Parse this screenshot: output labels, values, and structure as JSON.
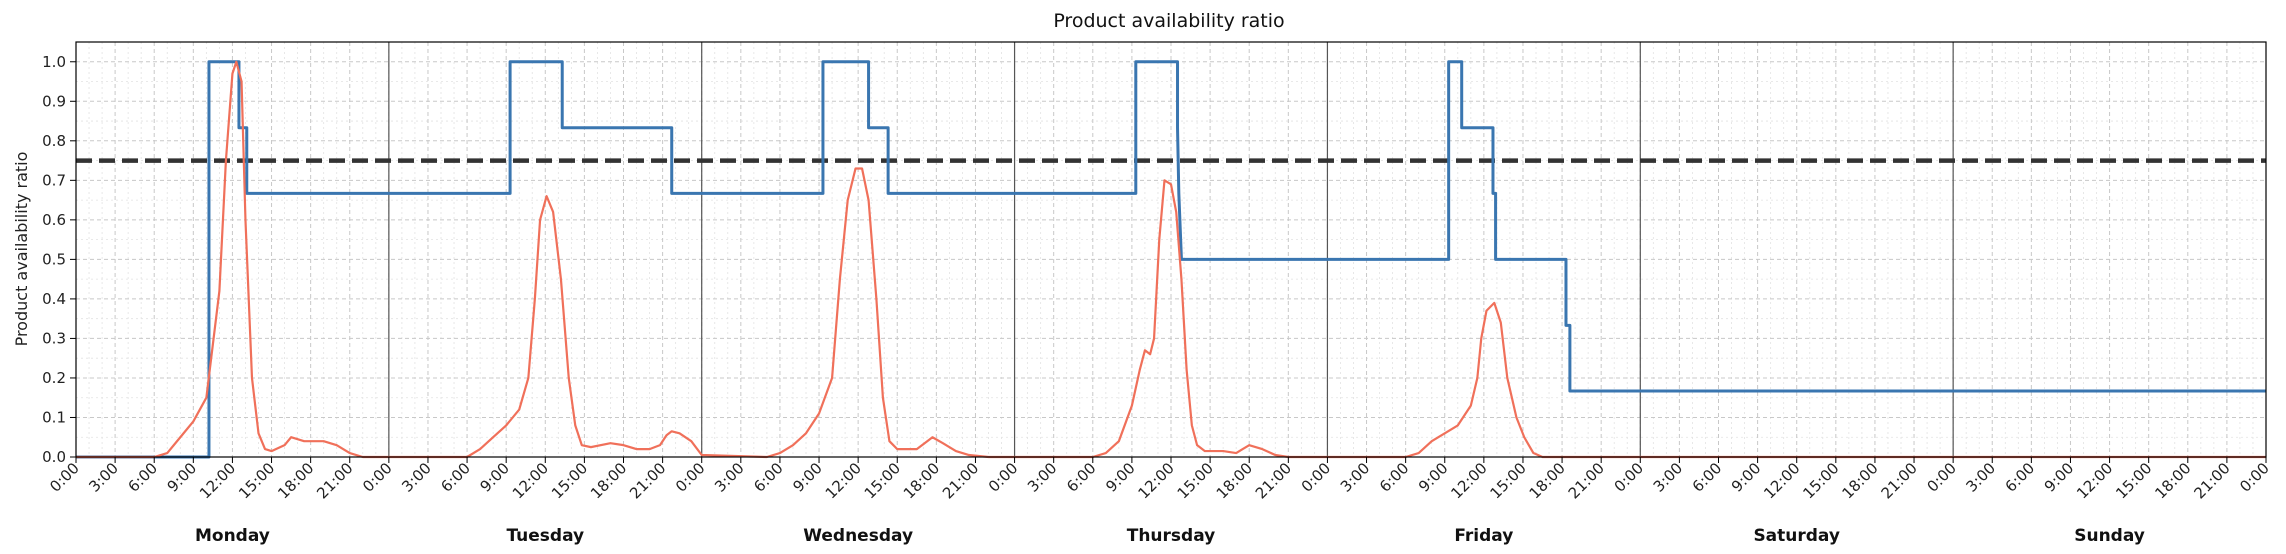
{
  "chart_data": {
    "type": "line",
    "title": "Product availability ratio",
    "ylabel": "Product availability ratio",
    "xlabel": "",
    "ylim": [
      0,
      1.05
    ],
    "xlim_hours": [
      0,
      168
    ],
    "y_ticks": [
      "0.0",
      "0.1",
      "0.2",
      "0.3",
      "0.4",
      "0.5",
      "0.6",
      "0.7",
      "0.8",
      "0.9",
      "1.0"
    ],
    "x_tick_labels": [
      "0:00",
      "3:00",
      "6:00",
      "9:00",
      "12:00",
      "15:00",
      "18:00",
      "21:00"
    ],
    "final_tick_label": "0:00",
    "days": [
      "Monday",
      "Tuesday",
      "Wednesday",
      "Thursday",
      "Friday",
      "Saturday",
      "Sunday"
    ],
    "grid": true,
    "threshold": {
      "value": 0.75,
      "color": "#333333",
      "style": "dashed"
    },
    "series": [
      {
        "color": "#3a76b0",
        "style": "step",
        "points": [
          [
            0,
            0
          ],
          [
            10.2,
            0
          ],
          [
            10.2,
            1.0
          ],
          [
            12.5,
            1.0
          ],
          [
            12.5,
            0.833
          ],
          [
            13.1,
            0.833
          ],
          [
            13.1,
            0.667
          ],
          [
            33.3,
            0.667
          ],
          [
            33.3,
            1.0
          ],
          [
            37.3,
            1.0
          ],
          [
            37.3,
            0.833
          ],
          [
            45.7,
            0.833
          ],
          [
            45.7,
            0.667
          ],
          [
            57.3,
            0.667
          ],
          [
            57.3,
            1.0
          ],
          [
            60.8,
            1.0
          ],
          [
            60.8,
            0.833
          ],
          [
            62.3,
            0.833
          ],
          [
            62.3,
            0.667
          ],
          [
            81.3,
            0.667
          ],
          [
            81.3,
            1.0
          ],
          [
            84.5,
            1.0
          ],
          [
            84.5,
            0.833
          ],
          [
            84.6,
            0.667
          ],
          [
            84.8,
            0.5
          ],
          [
            105.3,
            0.5
          ],
          [
            105.3,
            1.0
          ],
          [
            106.3,
            1.0
          ],
          [
            106.3,
            0.833
          ],
          [
            108.7,
            0.833
          ],
          [
            108.7,
            0.667
          ],
          [
            108.9,
            0.667
          ],
          [
            108.9,
            0.5
          ],
          [
            114.3,
            0.5
          ],
          [
            114.3,
            0.333
          ],
          [
            114.6,
            0.333
          ],
          [
            114.6,
            0.167
          ],
          [
            168,
            0.167
          ]
        ]
      },
      {
        "color": "#f0705a",
        "style": "line",
        "points": [
          [
            0,
            0
          ],
          [
            6,
            0
          ],
          [
            7,
            0.01
          ],
          [
            8,
            0.05
          ],
          [
            9,
            0.09
          ],
          [
            10,
            0.15
          ],
          [
            11,
            0.42
          ],
          [
            11.5,
            0.75
          ],
          [
            12,
            0.97
          ],
          [
            12.3,
            1.0
          ],
          [
            12.7,
            0.95
          ],
          [
            13,
            0.6
          ],
          [
            13.5,
            0.2
          ],
          [
            14,
            0.06
          ],
          [
            14.5,
            0.02
          ],
          [
            15,
            0.015
          ],
          [
            16,
            0.03
          ],
          [
            16.5,
            0.05
          ],
          [
            17.5,
            0.04
          ],
          [
            19,
            0.04
          ],
          [
            20,
            0.03
          ],
          [
            21,
            0.01
          ],
          [
            22,
            0
          ],
          [
            30,
            0
          ],
          [
            31,
            0.02
          ],
          [
            32,
            0.05
          ],
          [
            33,
            0.08
          ],
          [
            34,
            0.12
          ],
          [
            34.7,
            0.2
          ],
          [
            35.2,
            0.4
          ],
          [
            35.6,
            0.6
          ],
          [
            36.1,
            0.66
          ],
          [
            36.6,
            0.62
          ],
          [
            37.2,
            0.45
          ],
          [
            37.8,
            0.2
          ],
          [
            38.3,
            0.08
          ],
          [
            38.8,
            0.03
          ],
          [
            39.5,
            0.025
          ],
          [
            41,
            0.035
          ],
          [
            42,
            0.03
          ],
          [
            43,
            0.02
          ],
          [
            44,
            0.02
          ],
          [
            44.8,
            0.03
          ],
          [
            45.3,
            0.055
          ],
          [
            45.7,
            0.065
          ],
          [
            46.3,
            0.06
          ],
          [
            47.2,
            0.04
          ],
          [
            48,
            0.005
          ],
          [
            53,
            0
          ],
          [
            54,
            0.01
          ],
          [
            55,
            0.03
          ],
          [
            56,
            0.06
          ],
          [
            57,
            0.11
          ],
          [
            58,
            0.2
          ],
          [
            58.6,
            0.45
          ],
          [
            59.2,
            0.65
          ],
          [
            59.8,
            0.73
          ],
          [
            60.3,
            0.73
          ],
          [
            60.8,
            0.65
          ],
          [
            61.4,
            0.4
          ],
          [
            61.9,
            0.15
          ],
          [
            62.4,
            0.04
          ],
          [
            63,
            0.02
          ],
          [
            64,
            0.02
          ],
          [
            64.5,
            0.02
          ],
          [
            65.3,
            0.04
          ],
          [
            65.7,
            0.05
          ],
          [
            66.5,
            0.035
          ],
          [
            67.5,
            0.015
          ],
          [
            68.5,
            0.005
          ],
          [
            70,
            0
          ],
          [
            78,
            0
          ],
          [
            79,
            0.01
          ],
          [
            80,
            0.04
          ],
          [
            81,
            0.13
          ],
          [
            81.6,
            0.22
          ],
          [
            82,
            0.27
          ],
          [
            82.4,
            0.26
          ],
          [
            82.7,
            0.3
          ],
          [
            83.1,
            0.55
          ],
          [
            83.5,
            0.7
          ],
          [
            84,
            0.69
          ],
          [
            84.4,
            0.62
          ],
          [
            84.8,
            0.45
          ],
          [
            85.2,
            0.22
          ],
          [
            85.6,
            0.08
          ],
          [
            86,
            0.03
          ],
          [
            86.6,
            0.015
          ],
          [
            88,
            0.015
          ],
          [
            89,
            0.01
          ],
          [
            89.5,
            0.02
          ],
          [
            90,
            0.03
          ],
          [
            91,
            0.02
          ],
          [
            92,
            0.005
          ],
          [
            93,
            0
          ],
          [
            102,
            0
          ],
          [
            103,
            0.01
          ],
          [
            104,
            0.04
          ],
          [
            105,
            0.06
          ],
          [
            106,
            0.08
          ],
          [
            107,
            0.13
          ],
          [
            107.5,
            0.2
          ],
          [
            107.8,
            0.3
          ],
          [
            108.2,
            0.37
          ],
          [
            108.8,
            0.39
          ],
          [
            109.3,
            0.34
          ],
          [
            109.8,
            0.2
          ],
          [
            110.5,
            0.1
          ],
          [
            111.1,
            0.05
          ],
          [
            111.8,
            0.01
          ],
          [
            112.5,
            0
          ],
          [
            168,
            0
          ]
        ]
      }
    ]
  }
}
